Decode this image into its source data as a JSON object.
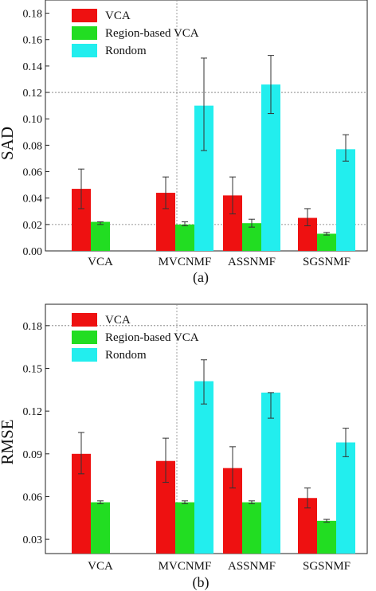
{
  "colors": {
    "vca": "#ee1111",
    "region": "#22dd22",
    "random": "#22eeee"
  },
  "chart_data": [
    {
      "type": "bar",
      "caption": "(a)",
      "ylabel": "SAD",
      "xlabel": "",
      "categories": [
        "VCA",
        "MVCNMF",
        "ASSNMF",
        "SGSNMF"
      ],
      "ylim": [
        0,
        0.19
      ],
      "yticks": [
        0.0,
        0.02,
        0.04,
        0.06,
        0.08,
        0.1,
        0.12,
        0.14,
        0.16,
        0.18
      ],
      "ytick_labels": [
        "0.00",
        "0.02",
        "0.04",
        "0.06",
        "0.08",
        "0.10",
        "0.12",
        "0.14",
        "0.16",
        "0.18"
      ],
      "grid": {
        "horizontal_dotted_at": [
          0.02,
          0.12
        ],
        "vertical_dotted_between": [
          "VCA",
          "MVCNMF"
        ]
      },
      "legend": {
        "placement": "top-left",
        "entries": [
          "VCA",
          "Region-based VCA",
          "Rondom"
        ]
      },
      "series": [
        {
          "name": "VCA",
          "color_key": "vca",
          "values": [
            0.047,
            0.044,
            0.042,
            0.025
          ],
          "err_low": [
            0.032,
            0.032,
            0.028,
            0.019
          ],
          "err_high": [
            0.062,
            0.056,
            0.056,
            0.032
          ]
        },
        {
          "name": "Region-based VCA",
          "color_key": "region",
          "values": [
            0.022,
            0.02,
            0.021,
            0.013
          ],
          "err_low": [
            0.02,
            0.019,
            0.018,
            0.012
          ],
          "err_high": [
            0.022,
            0.022,
            0.024,
            0.014
          ]
        },
        {
          "name": "Rondom",
          "color_key": "random",
          "values": [
            null,
            0.11,
            0.126,
            0.077
          ],
          "err_low": [
            null,
            0.076,
            0.104,
            0.068
          ],
          "err_high": [
            null,
            0.146,
            0.148,
            0.088
          ]
        }
      ]
    },
    {
      "type": "bar",
      "caption": "(b)",
      "ylabel": "RMSE",
      "xlabel": "",
      "categories": [
        "VCA",
        "MVCNMF",
        "ASSNMF",
        "SGSNMF"
      ],
      "ylim": [
        0.02,
        0.195
      ],
      "yticks": [
        0.03,
        0.06,
        0.09,
        0.12,
        0.15,
        0.18
      ],
      "ytick_labels": [
        "0.03",
        "0.06",
        "0.09",
        "0.12",
        "0.15",
        "0.18"
      ],
      "grid": {
        "horizontal_dotted_at": [
          0.18
        ],
        "vertical_dotted_between": [
          "VCA",
          "MVCNMF"
        ]
      },
      "legend": {
        "placement": "top-left",
        "entries": [
          "VCA",
          "Region-based VCA",
          "Rondom"
        ]
      },
      "series": [
        {
          "name": "VCA",
          "color_key": "vca",
          "values": [
            0.09,
            0.085,
            0.08,
            0.059
          ],
          "err_low": [
            0.076,
            0.07,
            0.066,
            0.052
          ],
          "err_high": [
            0.105,
            0.101,
            0.095,
            0.066
          ]
        },
        {
          "name": "Region-based VCA",
          "color_key": "region",
          "values": [
            0.056,
            0.056,
            0.056,
            0.043
          ],
          "err_low": [
            0.055,
            0.055,
            0.055,
            0.042
          ],
          "err_high": [
            0.057,
            0.057,
            0.057,
            0.044
          ]
        },
        {
          "name": "Rondom",
          "color_key": "random",
          "values": [
            null,
            0.141,
            0.133,
            0.098
          ],
          "err_low": [
            null,
            0.125,
            0.115,
            0.088
          ],
          "err_high": [
            null,
            0.156,
            0.133,
            0.108
          ]
        }
      ]
    }
  ]
}
